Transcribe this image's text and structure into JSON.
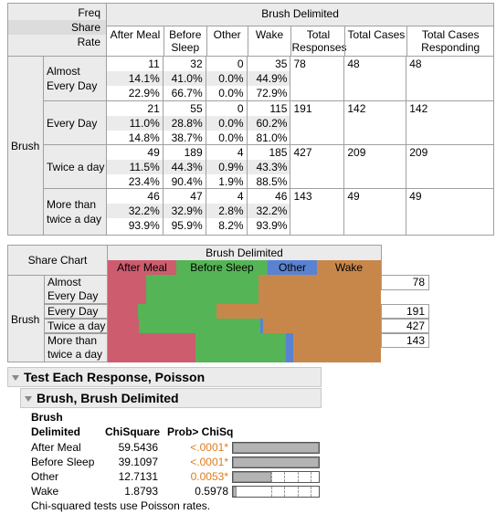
{
  "crosstab": {
    "row_header_labels": [
      "Freq",
      "Share",
      "Rate"
    ],
    "column_group": "Brush Delimited",
    "columns": [
      "After Meal",
      "Before Sleep",
      "Other",
      "Wake",
      "Total Responses",
      "Total Cases",
      "Total Cases Responding"
    ],
    "row_group": "Brush",
    "rows": [
      {
        "label": "Almost Every Day",
        "freq": [
          "11",
          "32",
          "0",
          "35"
        ],
        "share": [
          "14.1%",
          "41.0%",
          "0.0%",
          "44.9%"
        ],
        "rate": [
          "22.9%",
          "66.7%",
          "0.0%",
          "72.9%"
        ],
        "total_responses": "78",
        "total_cases": "48",
        "total_cases_responding": "48"
      },
      {
        "label": "Every Day",
        "freq": [
          "21",
          "55",
          "0",
          "115"
        ],
        "share": [
          "11.0%",
          "28.8%",
          "0.0%",
          "60.2%"
        ],
        "rate": [
          "14.8%",
          "38.7%",
          "0.0%",
          "81.0%"
        ],
        "total_responses": "191",
        "total_cases": "142",
        "total_cases_responding": "142"
      },
      {
        "label": "Twice a day",
        "freq": [
          "49",
          "189",
          "4",
          "185"
        ],
        "share": [
          "11.5%",
          "44.3%",
          "0.9%",
          "43.3%"
        ],
        "rate": [
          "23.4%",
          "90.4%",
          "1.9%",
          "88.5%"
        ],
        "total_responses": "427",
        "total_cases": "209",
        "total_cases_responding": "209"
      },
      {
        "label": "More than twice a day",
        "freq": [
          "46",
          "47",
          "4",
          "46"
        ],
        "share": [
          "32.2%",
          "32.9%",
          "2.8%",
          "32.2%"
        ],
        "rate": [
          "93.9%",
          "95.9%",
          "8.2%",
          "93.9%"
        ],
        "total_responses": "143",
        "total_cases": "49",
        "total_cases_responding": "49"
      }
    ]
  },
  "share_chart": {
    "title": "Share Chart",
    "column_group": "Brush Delimited",
    "row_group": "Brush",
    "legend": [
      {
        "label": "After Meal",
        "color": "#cd5c6e"
      },
      {
        "label": "Before Sleep",
        "color": "#55b455"
      },
      {
        "label": "Other",
        "color": "#5a82d2"
      },
      {
        "label": "Wake",
        "color": "#c8874a"
      }
    ],
    "rows": [
      {
        "label": "Almost Every Day",
        "shares": [
          14.1,
          41.0,
          0.0,
          44.9
        ],
        "total": "78"
      },
      {
        "label": "Every Day",
        "shares": [
          11.0,
          28.8,
          0.0,
          60.2
        ],
        "total": "191"
      },
      {
        "label": "Twice a day",
        "shares": [
          11.5,
          44.3,
          0.9,
          43.3
        ],
        "total": "427"
      },
      {
        "label": "More than twice a day",
        "shares": [
          32.2,
          32.9,
          2.8,
          32.2
        ],
        "total": "143"
      }
    ]
  },
  "test": {
    "outline_title": "Test Each Response, Poisson",
    "sub_outline_title": "Brush, Brush Delimited",
    "col_line1": "Brush",
    "col_line2": "Delimited",
    "col_chisq": "ChiSquare",
    "col_prob": "Prob> ChiSq",
    "rows": [
      {
        "label": "After Meal",
        "chisq": "59.5436",
        "prob": "<.0001*",
        "significant": true,
        "bar_fraction": 1.0
      },
      {
        "label": "Before Sleep",
        "chisq": "39.1097",
        "prob": "<.0001*",
        "significant": true,
        "bar_fraction": 1.0
      },
      {
        "label": "Other",
        "chisq": "12.7131",
        "prob": "0.0053*",
        "significant": true,
        "bar_fraction": 0.45
      },
      {
        "label": "Wake",
        "chisq": "1.8793",
        "prob": "0.5978",
        "significant": false,
        "bar_fraction": 0.04
      }
    ],
    "note": "Chi-squared tests use Poisson rates."
  }
}
